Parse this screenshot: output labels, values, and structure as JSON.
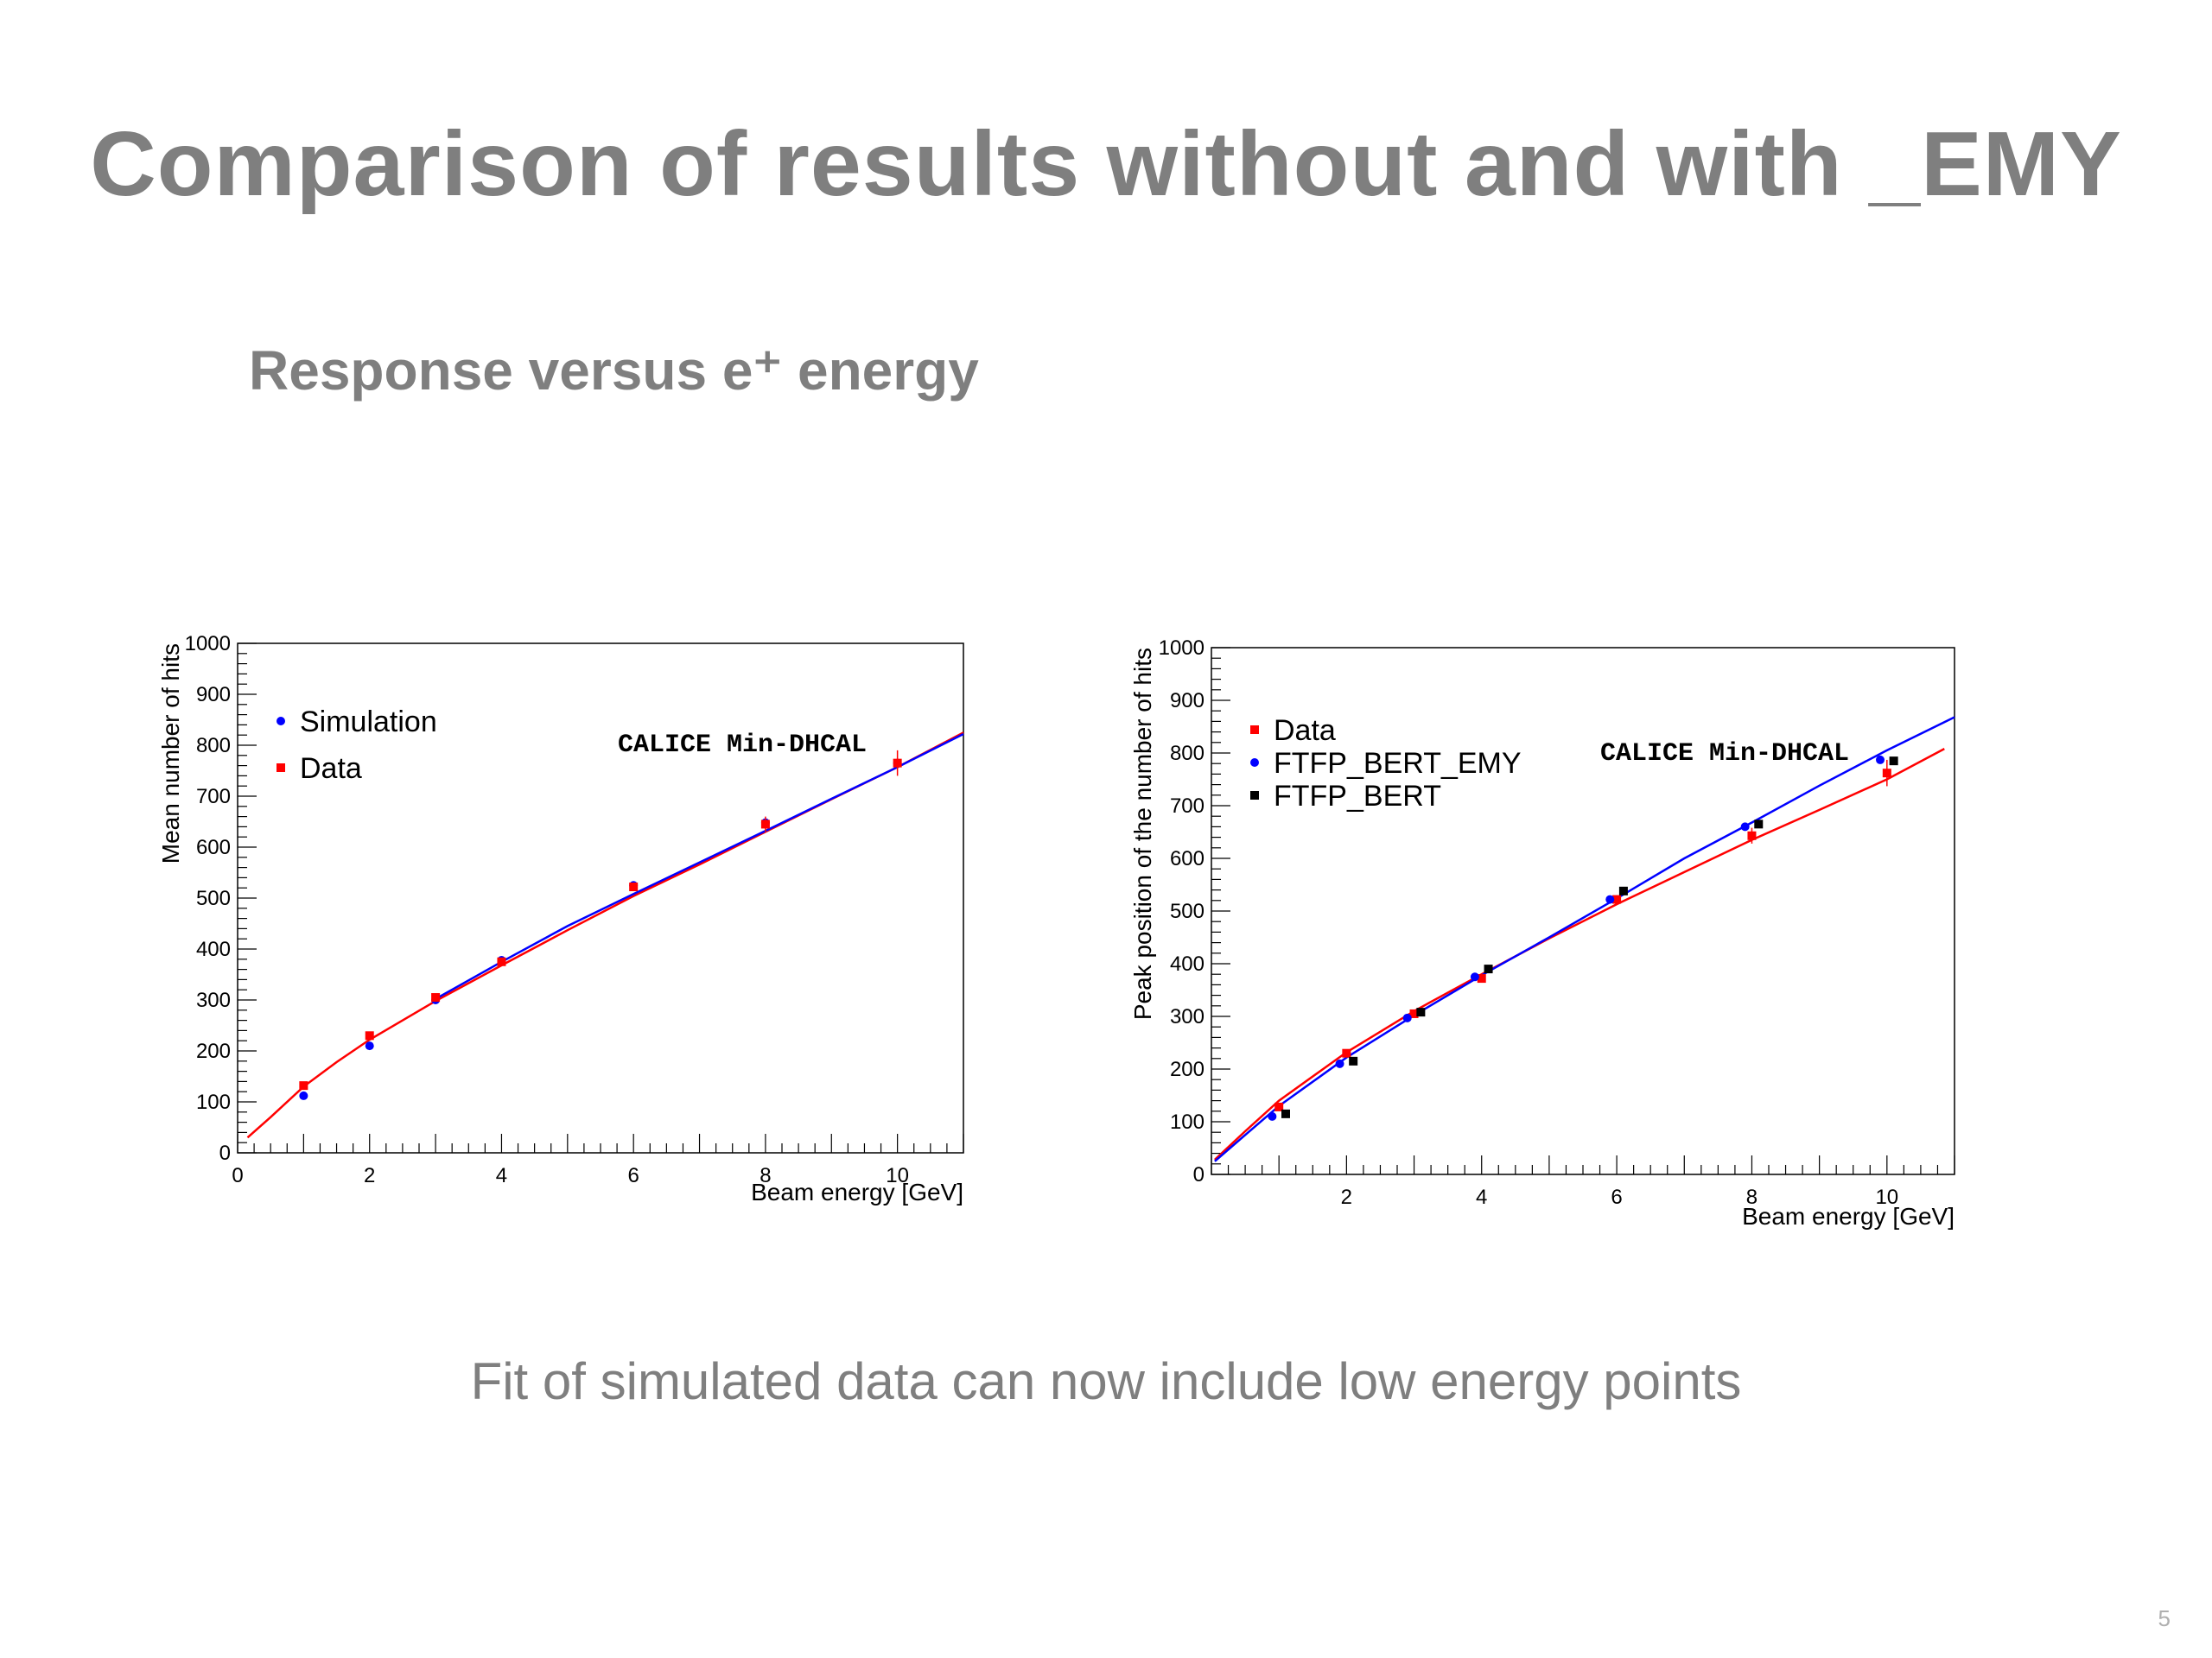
{
  "slide": {
    "title": "Comparison of results without and with _EMY",
    "subtitle": "Response versus e⁺ energy",
    "footer": "Fit of simulated data can now include low energy points",
    "page_number": "5"
  },
  "chart_data": [
    {
      "type": "scatter",
      "annotation": "CALICE Min-DHCAL",
      "xlabel": "Beam energy [GeV]",
      "ylabel": "Mean number of hits",
      "xlim": [
        0,
        11
      ],
      "ylim": [
        0,
        1000
      ],
      "xticks": [
        "0",
        "2",
        "4",
        "6",
        "8",
        "10"
      ],
      "yticks": [
        "0",
        "100",
        "200",
        "300",
        "400",
        "500",
        "600",
        "700",
        "800",
        "900",
        "1000"
      ],
      "legend_position": "top-left",
      "series": [
        {
          "name": "Simulation",
          "color": "#0000ff",
          "marker": "circle",
          "x": [
            1,
            2,
            3,
            4,
            6,
            8,
            10
          ],
          "y": [
            112,
            210,
            300,
            378,
            525,
            648,
            765
          ]
        },
        {
          "name": "Data",
          "color": "#ff0000",
          "marker": "square",
          "x": [
            1,
            2,
            3,
            4,
            6,
            8,
            10
          ],
          "y": [
            132,
            230,
            305,
            375,
            522,
            645,
            765
          ],
          "yerr": [
            5,
            6,
            6,
            6,
            8,
            15,
            25
          ]
        }
      ],
      "fits": [
        {
          "color": "#ff0000",
          "x": [
            0.15,
            0.5,
            1,
            1.5,
            2,
            3,
            4,
            5,
            6,
            7,
            8,
            9,
            10,
            11
          ],
          "y": [
            30,
            70,
            130,
            178,
            222,
            298,
            368,
            437,
            504,
            566,
            630,
            694,
            757,
            825
          ]
        },
        {
          "color": "#0000ff",
          "x": [
            3,
            4,
            5,
            6,
            7,
            8,
            9,
            10,
            11
          ],
          "y": [
            302,
            375,
            445,
            508,
            570,
            632,
            695,
            757,
            822
          ]
        }
      ]
    },
    {
      "type": "scatter",
      "annotation": "CALICE Min-DHCAL",
      "xlabel": "Beam energy [GeV]",
      "ylabel": "Peak position of the number of hits",
      "xlim": [
        0,
        11
      ],
      "ylim": [
        0,
        1000
      ],
      "xticks": [
        "2",
        "4",
        "6",
        "8",
        "10"
      ],
      "yticks": [
        "0",
        "100",
        "200",
        "300",
        "400",
        "500",
        "600",
        "700",
        "800",
        "900",
        "1000"
      ],
      "legend_position": "top-left",
      "series": [
        {
          "name": "Data",
          "color": "#ff0000",
          "marker": "square",
          "x": [
            1,
            2,
            3,
            4,
            6,
            8,
            10
          ],
          "y": [
            128,
            230,
            305,
            372,
            522,
            643,
            762
          ],
          "yerr": [
            5,
            6,
            6,
            6,
            8,
            15,
            25
          ]
        },
        {
          "name": "FTFP_BERT_EMY",
          "color": "#0000ff",
          "marker": "circle",
          "x": [
            0.9,
            1.9,
            2.9,
            3.9,
            5.9,
            7.9,
            9.9
          ],
          "y": [
            110,
            210,
            297,
            375,
            522,
            660,
            787
          ]
        },
        {
          "name": "FTFP_BERT",
          "color": "#000000",
          "marker": "square",
          "x": [
            1.1,
            2.1,
            3.1,
            4.1,
            6.1,
            8.1,
            10.1
          ],
          "y": [
            115,
            215,
            308,
            390,
            538,
            665,
            785
          ]
        }
      ],
      "fits": [
        {
          "color": "#ff0000",
          "x": [
            0.05,
            0.5,
            1,
            2,
            3,
            4,
            5,
            6,
            7,
            8,
            9,
            10,
            10.85
          ],
          "y": [
            28,
            82,
            140,
            232,
            310,
            380,
            448,
            513,
            574,
            635,
            692,
            750,
            808
          ]
        },
        {
          "color": "#0000ff",
          "x": [
            0.05,
            0.5,
            1,
            2,
            3,
            4,
            5,
            6,
            7,
            8,
            9,
            10,
            11
          ],
          "y": [
            25,
            75,
            130,
            222,
            302,
            378,
            450,
            524,
            600,
            668,
            738,
            805,
            868
          ]
        }
      ]
    }
  ]
}
